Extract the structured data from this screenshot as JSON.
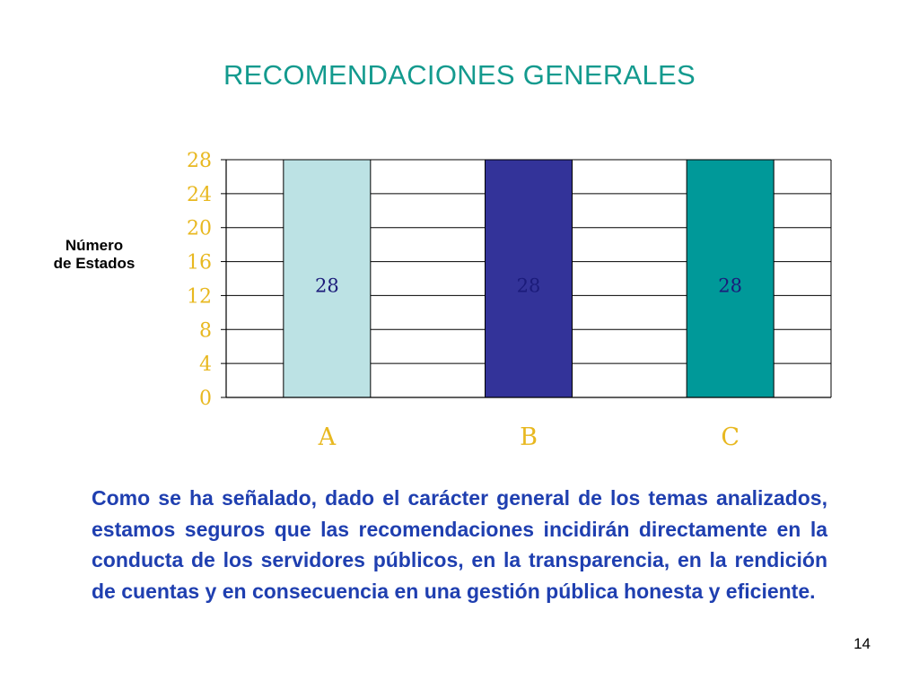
{
  "slide": {
    "title": "RECOMENDACIONES GENERALES",
    "body": "Como se ha señalado, dado el carácter general de los temas analizados, estamos seguros que las recomendaciones incidirán directamente en la conducta de los servidores públicos, en la transparencia, en la rendición de cuentas y en consecuencia en una gestión pública honesta y eficiente.",
    "page_number": "14"
  },
  "chart_data": {
    "type": "bar",
    "title": "",
    "xlabel": "",
    "ylabel": "Número de Estados",
    "ylabel_lines": [
      "Número",
      "de Estados"
    ],
    "categories": [
      "A",
      "B",
      "C"
    ],
    "values": [
      28,
      28,
      28
    ],
    "data_labels": [
      "28",
      "28",
      "28"
    ],
    "bar_colors": [
      "#bce2e4",
      "#333399",
      "#009999"
    ],
    "ylim": [
      0,
      28
    ],
    "yticks": [
      0,
      4,
      8,
      12,
      16,
      20,
      24,
      28
    ],
    "grid": true,
    "legend": "none",
    "colors": {
      "tick_labels": "#e8b820",
      "data_labels": "#1b1b7a",
      "title": "#139a8e",
      "body_text": "#1f3fb0"
    }
  }
}
